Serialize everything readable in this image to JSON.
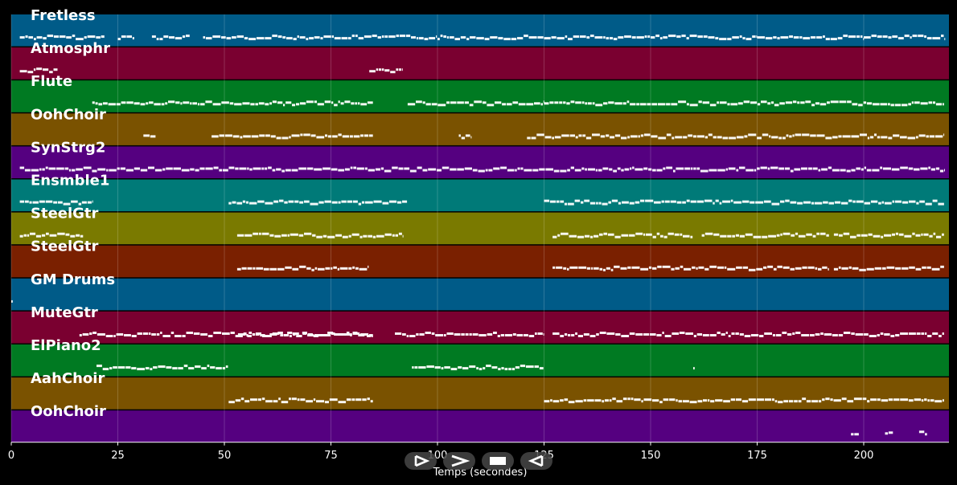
{
  "window": {
    "background": "#000000"
  },
  "timeline": {
    "x_label": "Temps (secondes)",
    "x_range": [
      0,
      220
    ],
    "x_ticks": [
      0,
      25,
      50,
      75,
      100,
      125,
      150,
      175,
      200
    ],
    "grid": true
  },
  "tracks": [
    {
      "name": "Fretless",
      "color": "#005b88",
      "note_color": "#ffffff",
      "notes": [
        [
          2,
          22
        ],
        [
          25,
          29
        ],
        [
          33,
          42
        ],
        [
          45,
          53
        ],
        [
          53,
          100
        ],
        [
          100,
          125
        ],
        [
          125,
          150
        ],
        [
          150,
          175
        ],
        [
          175,
          200
        ],
        [
          200,
          219
        ]
      ]
    },
    {
      "name": "Atmosphr",
      "color": "#7a0030",
      "note_color": "#ffffff",
      "notes": [
        [
          2,
          11
        ],
        [
          84,
          92
        ]
      ]
    },
    {
      "name": "Flute",
      "color": "#007a22",
      "note_color": "#ffffff",
      "notes": [
        [
          19,
          85
        ],
        [
          93,
          125
        ],
        [
          125,
          219
        ]
      ]
    },
    {
      "name": "OohChoir",
      "color": "#7a5200",
      "note_color": "#ffffff",
      "notes": [
        [
          31,
          34
        ],
        [
          47,
          85
        ],
        [
          105,
          108
        ],
        [
          121,
          219
        ]
      ]
    },
    {
      "name": "SynStrg2",
      "color": "#550080",
      "note_color": "#ffffff",
      "notes": [
        [
          2,
          219
        ]
      ]
    },
    {
      "name": "Ensmble1",
      "color": "#007a78",
      "note_color": "#ffffff",
      "notes": [
        [
          2,
          19
        ],
        [
          51,
          93
        ],
        [
          125,
          219
        ]
      ]
    },
    {
      "name": "SteelGtr",
      "color": "#7a7a00",
      "note_color": "#ffffff",
      "notes": [
        [
          2,
          17
        ],
        [
          53,
          92
        ],
        [
          127,
          160
        ],
        [
          162,
          192
        ],
        [
          193,
          219
        ]
      ]
    },
    {
      "name": "SteelGtr",
      "color": "#7a2000",
      "note_color": "#ffffff",
      "notes": [
        [
          53,
          84
        ],
        [
          127,
          192
        ],
        [
          193,
          219
        ]
      ]
    },
    {
      "name": "GM Drums",
      "color": "#005b88",
      "note_color": "#ffffff",
      "notes": [
        [
          0,
          0.5
        ]
      ]
    },
    {
      "name": "MuteGtr",
      "color": "#7a0030",
      "note_color": "#ffffff",
      "notes": [
        [
          16,
          85
        ],
        [
          53,
          85
        ],
        [
          90,
          125
        ],
        [
          127,
          219
        ]
      ]
    },
    {
      "name": "ElPiano2",
      "color": "#007a22",
      "note_color": "#ffffff",
      "notes": [
        [
          20,
          51
        ],
        [
          94,
          125
        ],
        [
          160,
          160.5
        ]
      ]
    },
    {
      "name": "AahChoir",
      "color": "#7a5200",
      "note_color": "#ffffff",
      "notes": [
        [
          51,
          85
        ],
        [
          125,
          219
        ]
      ]
    },
    {
      "name": "OohChoir",
      "color": "#550080",
      "note_color": "#ffffff",
      "notes": [
        [
          197,
          199
        ],
        [
          205,
          207
        ],
        [
          213,
          215
        ]
      ]
    }
  ],
  "controls": [
    {
      "id": "play",
      "icon": "play-icon"
    },
    {
      "id": "forward",
      "icon": "forward-icon"
    },
    {
      "id": "stop",
      "icon": "stop-icon"
    },
    {
      "id": "rewind",
      "icon": "rewind-icon"
    }
  ]
}
